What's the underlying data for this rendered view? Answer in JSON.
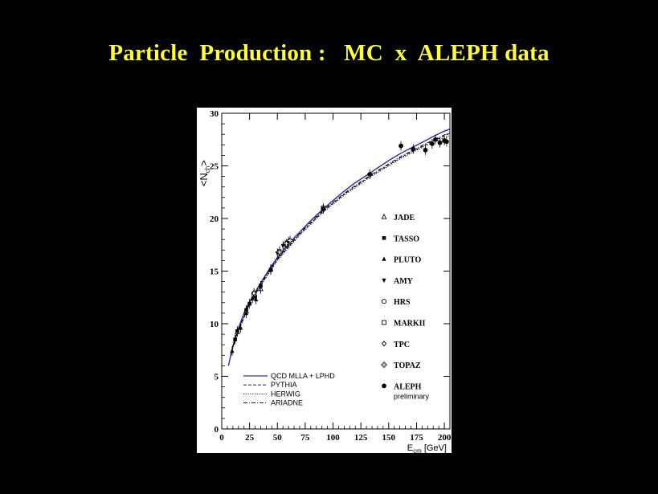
{
  "slide": {
    "title": "Particle  Production :   MC  x  ALEPH data"
  },
  "colors": {
    "background": "#000000",
    "title": "#ffff33",
    "qcd_line": "#2b2bb0",
    "plot_bg": "#ffffff"
  },
  "chart_data": {
    "type": "scatter",
    "title": "",
    "xlabel": "E_cm [GeV]",
    "ylabel": "<N_ch>",
    "xlim": [
      0,
      205
    ],
    "ylim": [
      0,
      30
    ],
    "xticks": [
      "0",
      "25",
      "50",
      "75",
      "100",
      "125",
      "150",
      "175",
      "200"
    ],
    "yticks": [
      "0",
      "5",
      "10",
      "15",
      "20",
      "25",
      "30"
    ],
    "grid": false,
    "point_legend_placement": "right",
    "line_legend_placement": "bottom-left",
    "point_series": [
      {
        "name": "JADE",
        "marker": "triangle-up-open",
        "points": [
          [
            14,
            9.2
          ],
          [
            22,
            11.2
          ],
          [
            35,
            13.3
          ],
          [
            44,
            15.2
          ]
        ]
      },
      {
        "name": "TASSO",
        "marker": "square-filled",
        "points": [
          [
            12,
            8.5
          ],
          [
            14,
            9.3
          ],
          [
            22,
            11.3
          ],
          [
            25,
            11.9
          ],
          [
            30,
            12.6
          ],
          [
            35,
            13.6
          ],
          [
            44,
            15.1
          ]
        ]
      },
      {
        "name": "PLUTO",
        "marker": "triangle-up-filled",
        "points": [
          [
            9.4,
            7.4
          ],
          [
            17,
            9.6
          ],
          [
            22,
            11.0
          ],
          [
            27.6,
            12.4
          ],
          [
            30.8,
            12.3
          ]
        ]
      },
      {
        "name": "AMY",
        "marker": "triangle-down-filled",
        "points": [
          [
            50,
            16.7
          ],
          [
            52,
            16.9
          ],
          [
            55,
            17.4
          ],
          [
            57,
            17.5
          ],
          [
            60,
            17.8
          ]
        ]
      },
      {
        "name": "HRS",
        "marker": "circle-open",
        "points": [
          [
            29,
            12.9
          ]
        ]
      },
      {
        "name": "MARKII",
        "marker": "square-open",
        "points": [
          [
            29,
            12.8
          ],
          [
            91.2,
            21.0
          ]
        ]
      },
      {
        "name": "TPC",
        "marker": "diamond-open",
        "points": [
          [
            29,
            12.9
          ]
        ]
      },
      {
        "name": "TOPAZ",
        "marker": "cross-open",
        "points": [
          [
            52,
            16.8
          ],
          [
            58,
            17.6
          ],
          [
            61.4,
            17.9
          ]
        ]
      },
      {
        "name": "ALEPH",
        "marker": "circle-filled",
        "points": [
          [
            91.2,
            20.9
          ],
          [
            133,
            24.2
          ],
          [
            161,
            26.9
          ],
          [
            172,
            26.6
          ],
          [
            183,
            26.5
          ],
          [
            189,
            27.1
          ],
          [
            192,
            27.5
          ],
          [
            196,
            27.2
          ],
          [
            200,
            27.4
          ],
          [
            202,
            27.3
          ]
        ]
      }
    ],
    "line_series": [
      {
        "name": "QCD MLLA + LPHD",
        "style": "solid",
        "color": "#2b2bb0",
        "x": [
          6,
          10,
          14,
          20,
          25,
          30,
          35,
          44,
          50,
          60,
          70,
          80,
          91.2,
          100,
          110,
          120,
          133,
          140,
          150,
          161,
          172,
          183,
          192,
          200,
          205
        ],
        "y": [
          6.0,
          7.9,
          9.3,
          11.0,
          12.1,
          13.0,
          13.9,
          15.4,
          16.3,
          17.6,
          18.7,
          19.8,
          20.9,
          21.7,
          22.6,
          23.4,
          24.3,
          24.8,
          25.5,
          26.2,
          26.8,
          27.4,
          27.9,
          28.3,
          28.5
        ]
      },
      {
        "name": "PYTHIA",
        "style": "dashed",
        "color": "#000000",
        "x": [
          8,
          14,
          25,
          35,
          50,
          70,
          91.2,
          110,
          133,
          161,
          183,
          205
        ],
        "y": [
          7.1,
          9.1,
          11.9,
          13.7,
          16.1,
          18.5,
          20.7,
          22.3,
          24.0,
          25.8,
          27.0,
          28.1
        ]
      },
      {
        "name": "HERWIG",
        "style": "dotted",
        "color": "#000000",
        "x": [
          8,
          14,
          25,
          35,
          50,
          70,
          91.2,
          110,
          133,
          161,
          183,
          205
        ],
        "y": [
          7.0,
          9.0,
          11.8,
          13.6,
          16.0,
          18.4,
          20.6,
          22.2,
          23.9,
          25.7,
          26.9,
          27.9
        ]
      },
      {
        "name": "ARIADNE",
        "style": "dashdot",
        "color": "#000000",
        "x": [
          8,
          14,
          25,
          35,
          50,
          70,
          91.2,
          110,
          133,
          161,
          183,
          205
        ],
        "y": [
          7.2,
          9.2,
          12.0,
          13.8,
          16.2,
          18.6,
          20.8,
          22.4,
          24.1,
          25.9,
          27.1,
          28.2
        ]
      }
    ],
    "annotations": [
      "ALEPH",
      "preliminary"
    ]
  }
}
